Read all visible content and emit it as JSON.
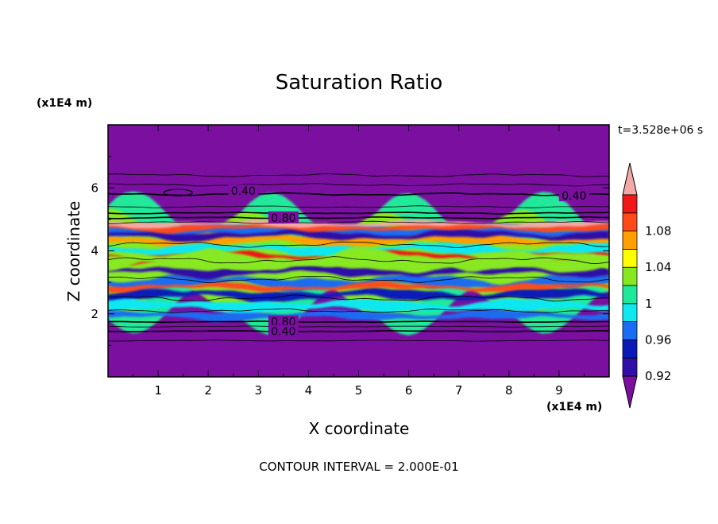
{
  "chart_data": {
    "type": "heatmap",
    "title": "Saturation Ratio",
    "xlabel": "X coordinate",
    "ylabel": "Z coordinate",
    "x_unit": "(x1E4 m)",
    "y_unit": "(x1E4 m)",
    "time_label": "t=3.528e+06 s",
    "footer": "CONTOUR INTERVAL = 2.000E-01",
    "xlim": [
      0,
      10
    ],
    "ylim": [
      0,
      8
    ],
    "x_ticks": [
      "1",
      "2",
      "3",
      "4",
      "5",
      "6",
      "7",
      "8",
      "9"
    ],
    "y_ticks": [
      "2",
      "4",
      "6"
    ],
    "contour_labels": [
      {
        "text": "0.40",
        "x": 2.7,
        "y": 5.9
      },
      {
        "text": "0.40",
        "x": 9.3,
        "y": 5.75
      },
      {
        "text": "0.80",
        "x": 3.5,
        "y": 5.05
      },
      {
        "text": "0.80",
        "x": 3.5,
        "y": 1.75
      },
      {
        "text": "0.40",
        "x": 3.5,
        "y": 1.45
      }
    ],
    "colorbar": {
      "labels": [
        "1.08",
        "1.04",
        "1",
        "0.96",
        "0.92"
      ],
      "levels": [
        0.92,
        0.94,
        0.96,
        0.98,
        1.0,
        1.02,
        1.04,
        1.06,
        1.08,
        1.1
      ],
      "colors": [
        "#7a0fa0",
        "#2f0fa8",
        "#0a1ab8",
        "#1a6cf2",
        "#10e8f0",
        "#20e89a",
        "#88e820",
        "#ffff00",
        "#ffa000",
        "#ff4a1a",
        "#f01818",
        "#f4a8a8"
      ]
    }
  }
}
